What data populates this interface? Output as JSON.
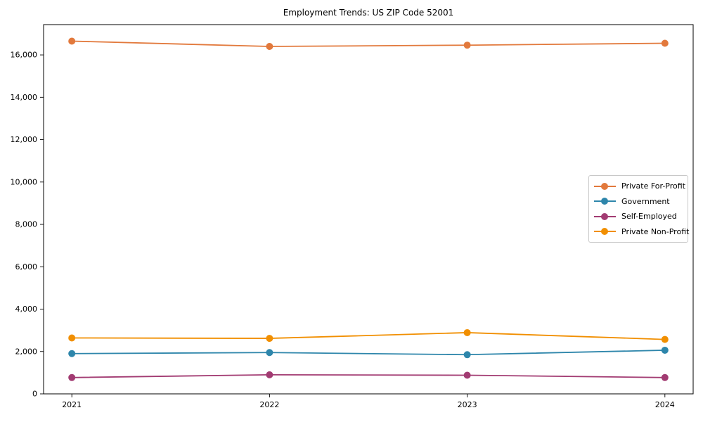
{
  "chart_data": {
    "type": "line",
    "title": "Employment Trends: US ZIP Code 52001",
    "x": [
      "2021",
      "2022",
      "2023",
      "2024"
    ],
    "x_margin": 0.0435,
    "xlabel": "",
    "ylabel": "",
    "ylim": [
      0,
      17430
    ],
    "yticks": [
      0,
      2000,
      4000,
      6000,
      8000,
      10000,
      12000,
      14000,
      16000
    ],
    "ytick_labels": [
      "0",
      "2,000",
      "4,000",
      "6,000",
      "8,000",
      "10,000",
      "12,000",
      "14,000",
      "16,000"
    ],
    "grid": false,
    "legend": {
      "position": "center-right"
    },
    "series": [
      {
        "name": "Private For-Profit",
        "color": "#e2793c",
        "values": [
          16650,
          16400,
          16460,
          16550
        ]
      },
      {
        "name": "Government",
        "color": "#2e86ab",
        "values": [
          1900,
          1950,
          1850,
          2060
        ]
      },
      {
        "name": "Self-Employed",
        "color": "#a23b72",
        "values": [
          770,
          900,
          880,
          770
        ]
      },
      {
        "name": "Private Non-Profit",
        "color": "#f18f01",
        "values": [
          2640,
          2620,
          2890,
          2570
        ]
      }
    ]
  }
}
